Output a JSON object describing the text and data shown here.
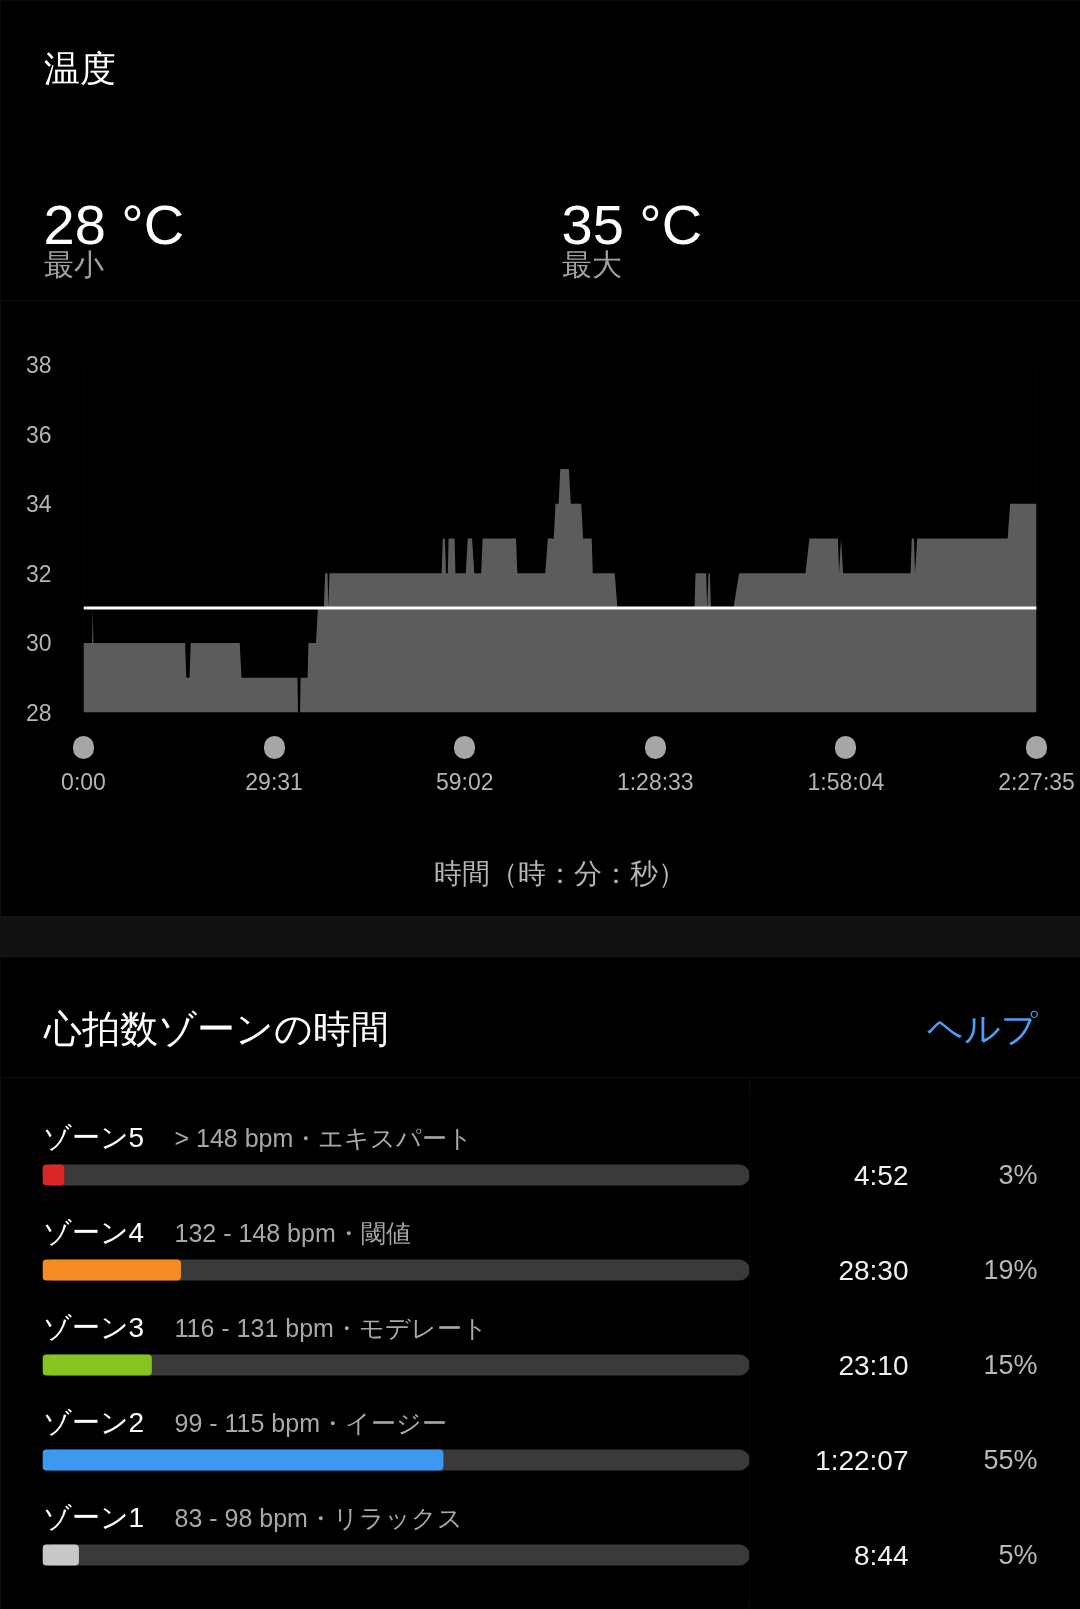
{
  "chart_data": [
    {
      "type": "area",
      "title": "温度",
      "annotations": [
        "28 °C",
        "最小",
        "35 °C",
        "最大"
      ],
      "xlabel": "時間（時：分：秒）",
      "color": "#5c5c5c",
      "x": [
        0,
        80,
        86,
        92,
        944,
        955,
        985,
        996,
        1452,
        1468,
        1988,
        1993,
        2012,
        2017,
        2082,
        2090,
        2160,
        2178,
        2233,
        2245,
        2268,
        2275,
        2285,
        3328,
        3338,
        3358,
        3368,
        3385,
        3392,
        3448,
        3456,
        3552,
        3570,
        3610,
        3632,
        3695,
        3708,
        4019,
        4031,
        4290,
        4315,
        4370,
        4385,
        4415,
        4430,
        4510,
        4528,
        4625,
        4642,
        4722,
        4732,
        4936,
        4961,
        5677,
        5687,
        5785,
        5795,
        5808,
        5820,
        5830,
        6039,
        6092,
        6708,
        6745,
        7010,
        7020,
        7039,
        7058,
        7685,
        7696,
        7717,
        7726,
        7747,
        8587,
        8610,
        8855
      ],
      "values": [
        30,
        30,
        31,
        30,
        30,
        29,
        29,
        30,
        30,
        29,
        29,
        28,
        28,
        29,
        29,
        30,
        30,
        31,
        31,
        32,
        32,
        31,
        32,
        32,
        33,
        33,
        32,
        32,
        33,
        33,
        32,
        32,
        33,
        33,
        32,
        32,
        33,
        33,
        32,
        32,
        33,
        33,
        34,
        34,
        35,
        35,
        34,
        34,
        33,
        33,
        32,
        32,
        31,
        31,
        32,
        32,
        31,
        32,
        32,
        31,
        31,
        32,
        32,
        33,
        33,
        32,
        33,
        32,
        32,
        33,
        33,
        32,
        33,
        33,
        34,
        34
      ],
      "xlim": [
        0,
        8855
      ],
      "xticks": [
        {
          "value": 0,
          "label": "0:00"
        },
        {
          "value": 1771,
          "label": "29:31"
        },
        {
          "value": 3542,
          "label": "59:02"
        },
        {
          "value": 5313,
          "label": "1:28:33"
        },
        {
          "value": 7084,
          "label": "1:58:04"
        },
        {
          "value": 8855,
          "label": "2:27:35"
        }
      ],
      "ylim": [
        28,
        38
      ],
      "yticks": [
        28,
        30,
        32,
        34,
        36,
        38
      ],
      "ref_lines": [
        {
          "axis": "y",
          "value": 31,
          "color": "#ffffff"
        }
      ]
    },
    {
      "type": "bar",
      "orientation": "horizontal",
      "title": "心拍数ゾーンの時間",
      "categories": [
        "ゾーン5",
        "ゾーン4",
        "ゾーン3",
        "ゾーン2",
        "ゾーン1"
      ],
      "values": [
        3,
        19,
        15,
        55,
        5
      ],
      "colors": [
        "#d92626",
        "#f58b22",
        "#86c520",
        "#3d98f2",
        "#c8c8c8"
      ],
      "value_labels": [
        "3%",
        "19%",
        "15%",
        "55%",
        "5%"
      ],
      "tick_labels": "y",
      "annotations": [
        "ヘルプ",
        "> 148 bpm・エキスパート",
        "4:52",
        "132 - 148 bpm・閾値",
        "28:30",
        "116 - 131 bpm・モデレート",
        "23:10",
        "99 - 115 bpm・イージー",
        "1:22:07",
        "83 - 98 bpm・リラックス",
        "8:44"
      ]
    }
  ]
}
